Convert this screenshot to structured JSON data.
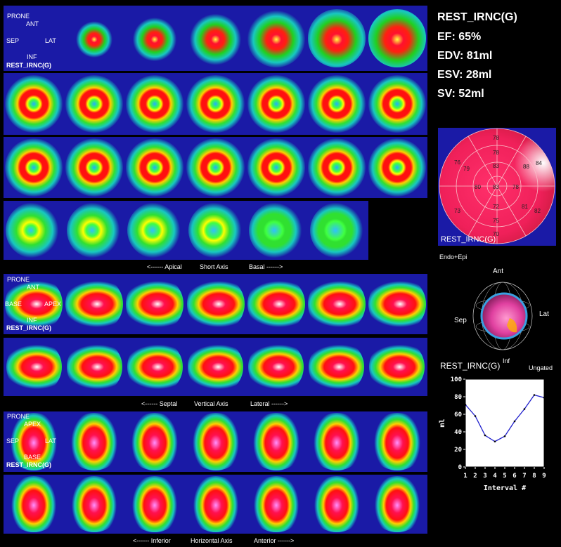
{
  "stats": {
    "title": "REST_IRNC(G)",
    "ef": "EF: 65%",
    "edv": "EDV: 81ml",
    "esv": "ESV: 28ml",
    "sv": "SV: 52ml"
  },
  "sa_block": {
    "orientation": {
      "top": "PRONE",
      "ant": "ANT",
      "sep": "SEP",
      "lat": "LAT",
      "inf": "INF"
    },
    "label": "REST_IRNC(G)",
    "caption": {
      "left": "<------ Apical",
      "mid": "Short Axis",
      "right": "Basal ------>"
    }
  },
  "vla_block": {
    "orientation": {
      "top": "PRONE",
      "ant": "ANT",
      "base": "BASE",
      "apex": "APEX",
      "inf": "INF"
    },
    "label": "REST_IRNC(G)",
    "caption": {
      "left": "<------ Septal",
      "mid": "Vertical Axis",
      "right": "Lateral ------>"
    }
  },
  "hla_block": {
    "orientation": {
      "top": "PRONE",
      "apex": "APEX",
      "sep": "SEP",
      "lat": "LAT",
      "base": "BASE"
    },
    "label": "REST_IRNC(G)",
    "caption": {
      "left": "<------ Inferior",
      "mid": "Horizontal Axis",
      "right": "Anterior ------>"
    }
  },
  "polar_map": {
    "label": "REST_IRNC(G)",
    "values": [
      "78",
      "78",
      "76",
      "88",
      "84",
      "79",
      "83",
      "80",
      "83",
      "78",
      "73",
      "72",
      "81",
      "82",
      "75",
      "70"
    ]
  },
  "model3d": {
    "mode": "Endo+Epi",
    "ant": "Ant",
    "sep": "Sep",
    "lat": "Lat",
    "inf": "Inf",
    "label": "REST_IRNC(G)",
    "status": "Ungated"
  },
  "chart_data": {
    "type": "line",
    "xlabel": "Interval #",
    "ylabel": "ml",
    "x": [
      1,
      2,
      3,
      4,
      5,
      6,
      7,
      8,
      9
    ],
    "values": [
      71,
      58,
      36,
      29,
      35,
      52,
      66,
      82,
      79
    ],
    "ylim": [
      0,
      100
    ],
    "yticks": [
      "0",
      "20",
      "40",
      "60",
      "80",
      "100"
    ],
    "xticks": [
      "1",
      "2",
      "3",
      "4",
      "5",
      "6",
      "7",
      "8",
      "9"
    ],
    "colors": {
      "line": "#1f1fcc",
      "point": "#000000"
    }
  }
}
